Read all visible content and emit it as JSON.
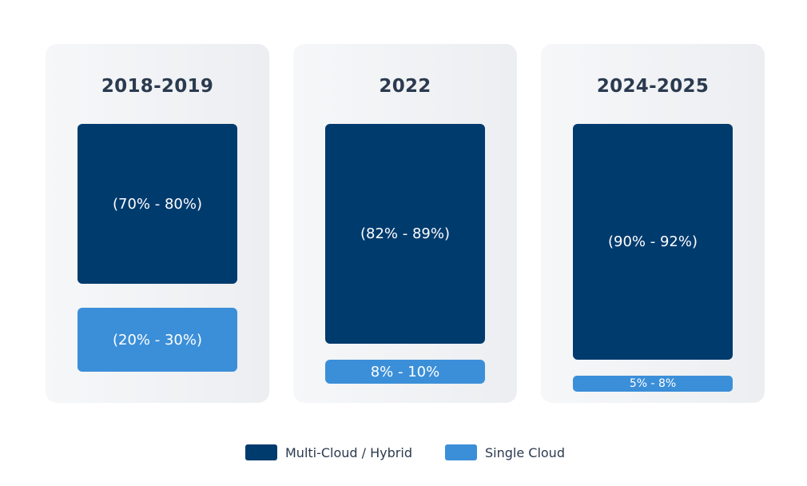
{
  "chart_data": {
    "type": "bar",
    "title": "",
    "categories": [
      "2018-2019",
      "2022",
      "2024-2025"
    ],
    "series": [
      {
        "name": "Multi-Cloud / Hybrid",
        "color": "#003b6e",
        "labels": [
          "(70% - 80%)",
          "(82% - 89%)",
          "(90% - 92%)"
        ],
        "ranges": [
          [
            70,
            80
          ],
          [
            82,
            89
          ],
          [
            90,
            92
          ]
        ]
      },
      {
        "name": "Single Cloud",
        "color": "#3b8fd9",
        "labels": [
          "(20% - 30%)",
          "8% - 10%",
          "5% - 8%"
        ],
        "ranges": [
          [
            20,
            30
          ],
          [
            8,
            10
          ],
          [
            5,
            8
          ]
        ]
      }
    ],
    "legend_position": "bottom-center"
  }
}
